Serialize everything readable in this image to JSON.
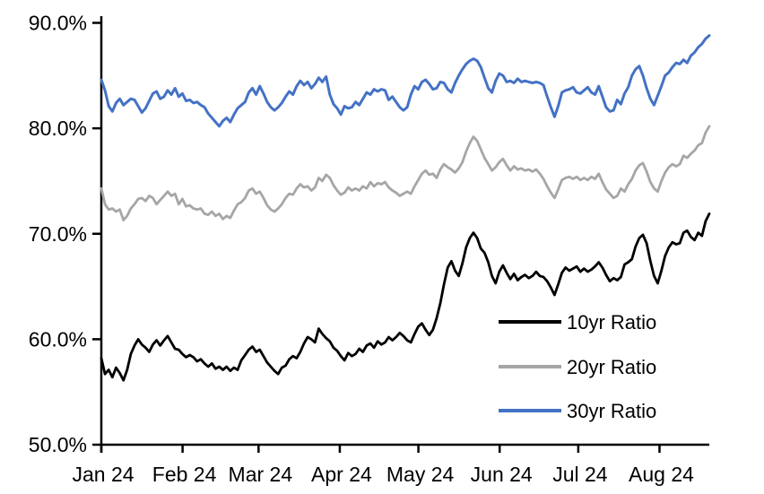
{
  "chart_data": {
    "type": "line",
    "title": "",
    "xlabel": "",
    "ylabel": "",
    "grid": false,
    "legend_position": "inside-lower-right",
    "y_axis": {
      "tick_labels": [
        "90.0%",
        "80.0%",
        "70.0%",
        "60.0%",
        "50.0%"
      ],
      "tick_values": [
        90,
        80,
        70,
        60,
        50
      ],
      "ylim": [
        50,
        90
      ]
    },
    "x_axis": {
      "tick_labels": [
        "Jan 24",
        "Feb 24",
        "Mar 24",
        "Apr 24",
        "May 24",
        "Jun 24",
        "Jul 24",
        "Aug 24"
      ],
      "tick_day_offsets": [
        0,
        31,
        60,
        91,
        121,
        152,
        182,
        213
      ],
      "span_days": 232
    },
    "series": [
      {
        "id": "10yr",
        "name": "10yr Ratio",
        "color": "#000000",
        "stroke_width": 2.8,
        "values": [
          58.2,
          56.7,
          57.1,
          56.4,
          57.3,
          56.8,
          56.1,
          57.1,
          58.6,
          59.4,
          60.0,
          59.5,
          59.2,
          58.8,
          59.5,
          59.9,
          59.4,
          59.9,
          60.3,
          59.7,
          59.1,
          59.0,
          58.6,
          58.3,
          58.5,
          58.3,
          57.9,
          58.1,
          57.7,
          57.4,
          57.7,
          57.2,
          57.4,
          57.1,
          57.4,
          57.0,
          57.3,
          57.1,
          58.0,
          58.5,
          59.0,
          59.3,
          58.8,
          59.0,
          58.4,
          57.8,
          57.4,
          57.0,
          56.7,
          57.3,
          57.5,
          58.1,
          58.4,
          58.2,
          58.8,
          59.6,
          60.2,
          60.0,
          59.7,
          61.0,
          60.5,
          60.1,
          59.8,
          59.2,
          58.9,
          58.4,
          58.0,
          58.7,
          58.4,
          58.6,
          59.1,
          58.8,
          59.4,
          59.6,
          59.2,
          59.8,
          59.5,
          59.7,
          60.2,
          59.9,
          60.2,
          60.6,
          60.3,
          59.9,
          59.7,
          60.5,
          61.2,
          61.5,
          60.9,
          60.4,
          60.9,
          62.0,
          63.4,
          65.2,
          66.8,
          67.4,
          66.5,
          66.0,
          67.2,
          68.7,
          69.6,
          70.1,
          69.6,
          68.6,
          68.2,
          67.3,
          66.0,
          65.3,
          66.4,
          67.0,
          66.3,
          65.7,
          66.2,
          65.6,
          65.9,
          66.1,
          65.8,
          66.0,
          66.4,
          66.0,
          65.9,
          65.5,
          64.9,
          64.2,
          65.2,
          66.3,
          66.8,
          66.5,
          66.7,
          66.9,
          66.4,
          66.7,
          66.4,
          66.6,
          66.9,
          67.3,
          66.8,
          66.1,
          65.5,
          65.8,
          65.6,
          65.9,
          67.1,
          67.3,
          67.6,
          68.8,
          69.6,
          69.9,
          69.1,
          67.4,
          66.0,
          65.3,
          66.5,
          67.9,
          68.7,
          69.2,
          69.0,
          69.1,
          70.1,
          70.3,
          69.7,
          69.4,
          70.1,
          69.8,
          71.2,
          71.9
        ]
      },
      {
        "id": "20yr",
        "name": "20yr Ratio",
        "color": "#A6A6A6",
        "stroke_width": 2.8,
        "values": [
          74.3,
          72.8,
          72.3,
          72.4,
          72.1,
          72.3,
          71.3,
          71.7,
          72.4,
          72.8,
          73.3,
          73.4,
          73.1,
          73.6,
          73.4,
          72.8,
          73.2,
          73.6,
          74.0,
          73.6,
          73.8,
          72.8,
          73.3,
          72.6,
          72.7,
          72.4,
          72.3,
          72.4,
          71.9,
          71.8,
          72.1,
          71.7,
          71.9,
          71.4,
          71.7,
          71.5,
          72.2,
          72.8,
          73.0,
          73.4,
          74.1,
          74.3,
          73.8,
          74.0,
          73.4,
          72.7,
          72.3,
          72.1,
          72.4,
          72.8,
          73.4,
          73.8,
          73.7,
          74.3,
          74.7,
          74.4,
          74.5,
          74.1,
          74.4,
          75.3,
          75.0,
          75.6,
          75.3,
          74.6,
          74.1,
          73.7,
          73.9,
          74.4,
          74.1,
          74.3,
          74.1,
          74.5,
          74.3,
          74.9,
          74.5,
          74.8,
          74.7,
          74.9,
          74.4,
          74.1,
          73.9,
          73.6,
          73.8,
          74.0,
          73.8,
          74.5,
          75.1,
          75.7,
          76.0,
          75.6,
          75.7,
          75.3,
          76.1,
          76.6,
          76.3,
          76.1,
          75.8,
          76.2,
          76.8,
          77.8,
          78.6,
          79.2,
          78.8,
          78.0,
          77.2,
          76.6,
          76.0,
          76.3,
          76.8,
          77.1,
          76.5,
          76.0,
          76.4,
          76.1,
          76.2,
          76.0,
          76.1,
          75.9,
          76.1,
          75.7,
          75.2,
          74.5,
          73.9,
          73.4,
          74.2,
          75.1,
          75.3,
          75.4,
          75.2,
          75.4,
          75.1,
          75.3,
          75.1,
          75.4,
          75.2,
          75.7,
          74.9,
          74.2,
          73.8,
          73.4,
          73.6,
          74.3,
          74.0,
          74.7,
          75.2,
          76.0,
          76.5,
          76.7,
          75.9,
          74.9,
          74.3,
          74.0,
          75.0,
          75.8,
          76.3,
          76.6,
          76.4,
          76.6,
          77.4,
          77.2,
          77.6,
          77.9,
          78.4,
          78.6,
          79.6,
          80.2
        ]
      },
      {
        "id": "30yr",
        "name": "30yr Ratio",
        "color": "#4472C4",
        "stroke_width": 3.0,
        "values": [
          84.6,
          83.6,
          82.1,
          81.6,
          82.4,
          82.8,
          82.2,
          82.5,
          82.8,
          82.7,
          82.1,
          81.5,
          81.9,
          82.6,
          83.3,
          83.5,
          82.8,
          83.0,
          83.6,
          83.2,
          83.8,
          83.0,
          83.3,
          82.6,
          82.7,
          82.4,
          82.5,
          82.2,
          82.0,
          81.4,
          81.0,
          80.6,
          80.2,
          80.7,
          81.0,
          80.6,
          81.3,
          81.9,
          82.2,
          82.5,
          83.4,
          83.8,
          83.2,
          84.0,
          83.3,
          82.5,
          82.0,
          81.7,
          82.0,
          82.4,
          83.0,
          83.5,
          83.2,
          84.0,
          84.5,
          84.1,
          84.4,
          83.8,
          84.2,
          84.8,
          84.4,
          84.9,
          83.2,
          82.3,
          81.9,
          81.3,
          82.1,
          81.9,
          82.0,
          82.5,
          82.2,
          82.8,
          83.4,
          83.2,
          83.7,
          83.5,
          83.7,
          83.6,
          82.7,
          83.0,
          82.5,
          82.0,
          81.7,
          82.0,
          83.2,
          84.0,
          83.7,
          84.4,
          84.6,
          84.2,
          83.7,
          83.8,
          84.4,
          84.3,
          83.7,
          83.4,
          84.3,
          85.0,
          85.6,
          86.1,
          86.4,
          86.6,
          86.4,
          85.8,
          84.8,
          83.8,
          83.4,
          84.5,
          85.2,
          85.0,
          84.4,
          84.5,
          84.3,
          84.7,
          84.4,
          84.5,
          84.4,
          84.3,
          84.4,
          84.3,
          84.1,
          83.0,
          82.0,
          81.1,
          82.1,
          83.4,
          83.6,
          83.7,
          83.9,
          83.4,
          83.3,
          83.6,
          83.9,
          83.4,
          83.2,
          84.0,
          83.0,
          82.0,
          81.6,
          81.7,
          82.7,
          82.3,
          83.3,
          83.9,
          85.0,
          85.6,
          85.9,
          85.0,
          83.8,
          82.8,
          82.2,
          83.1,
          84.0,
          85.0,
          85.3,
          85.8,
          86.2,
          86.1,
          86.5,
          86.2,
          86.9,
          87.2,
          87.7,
          88.0,
          88.5,
          88.8
        ]
      }
    ]
  }
}
